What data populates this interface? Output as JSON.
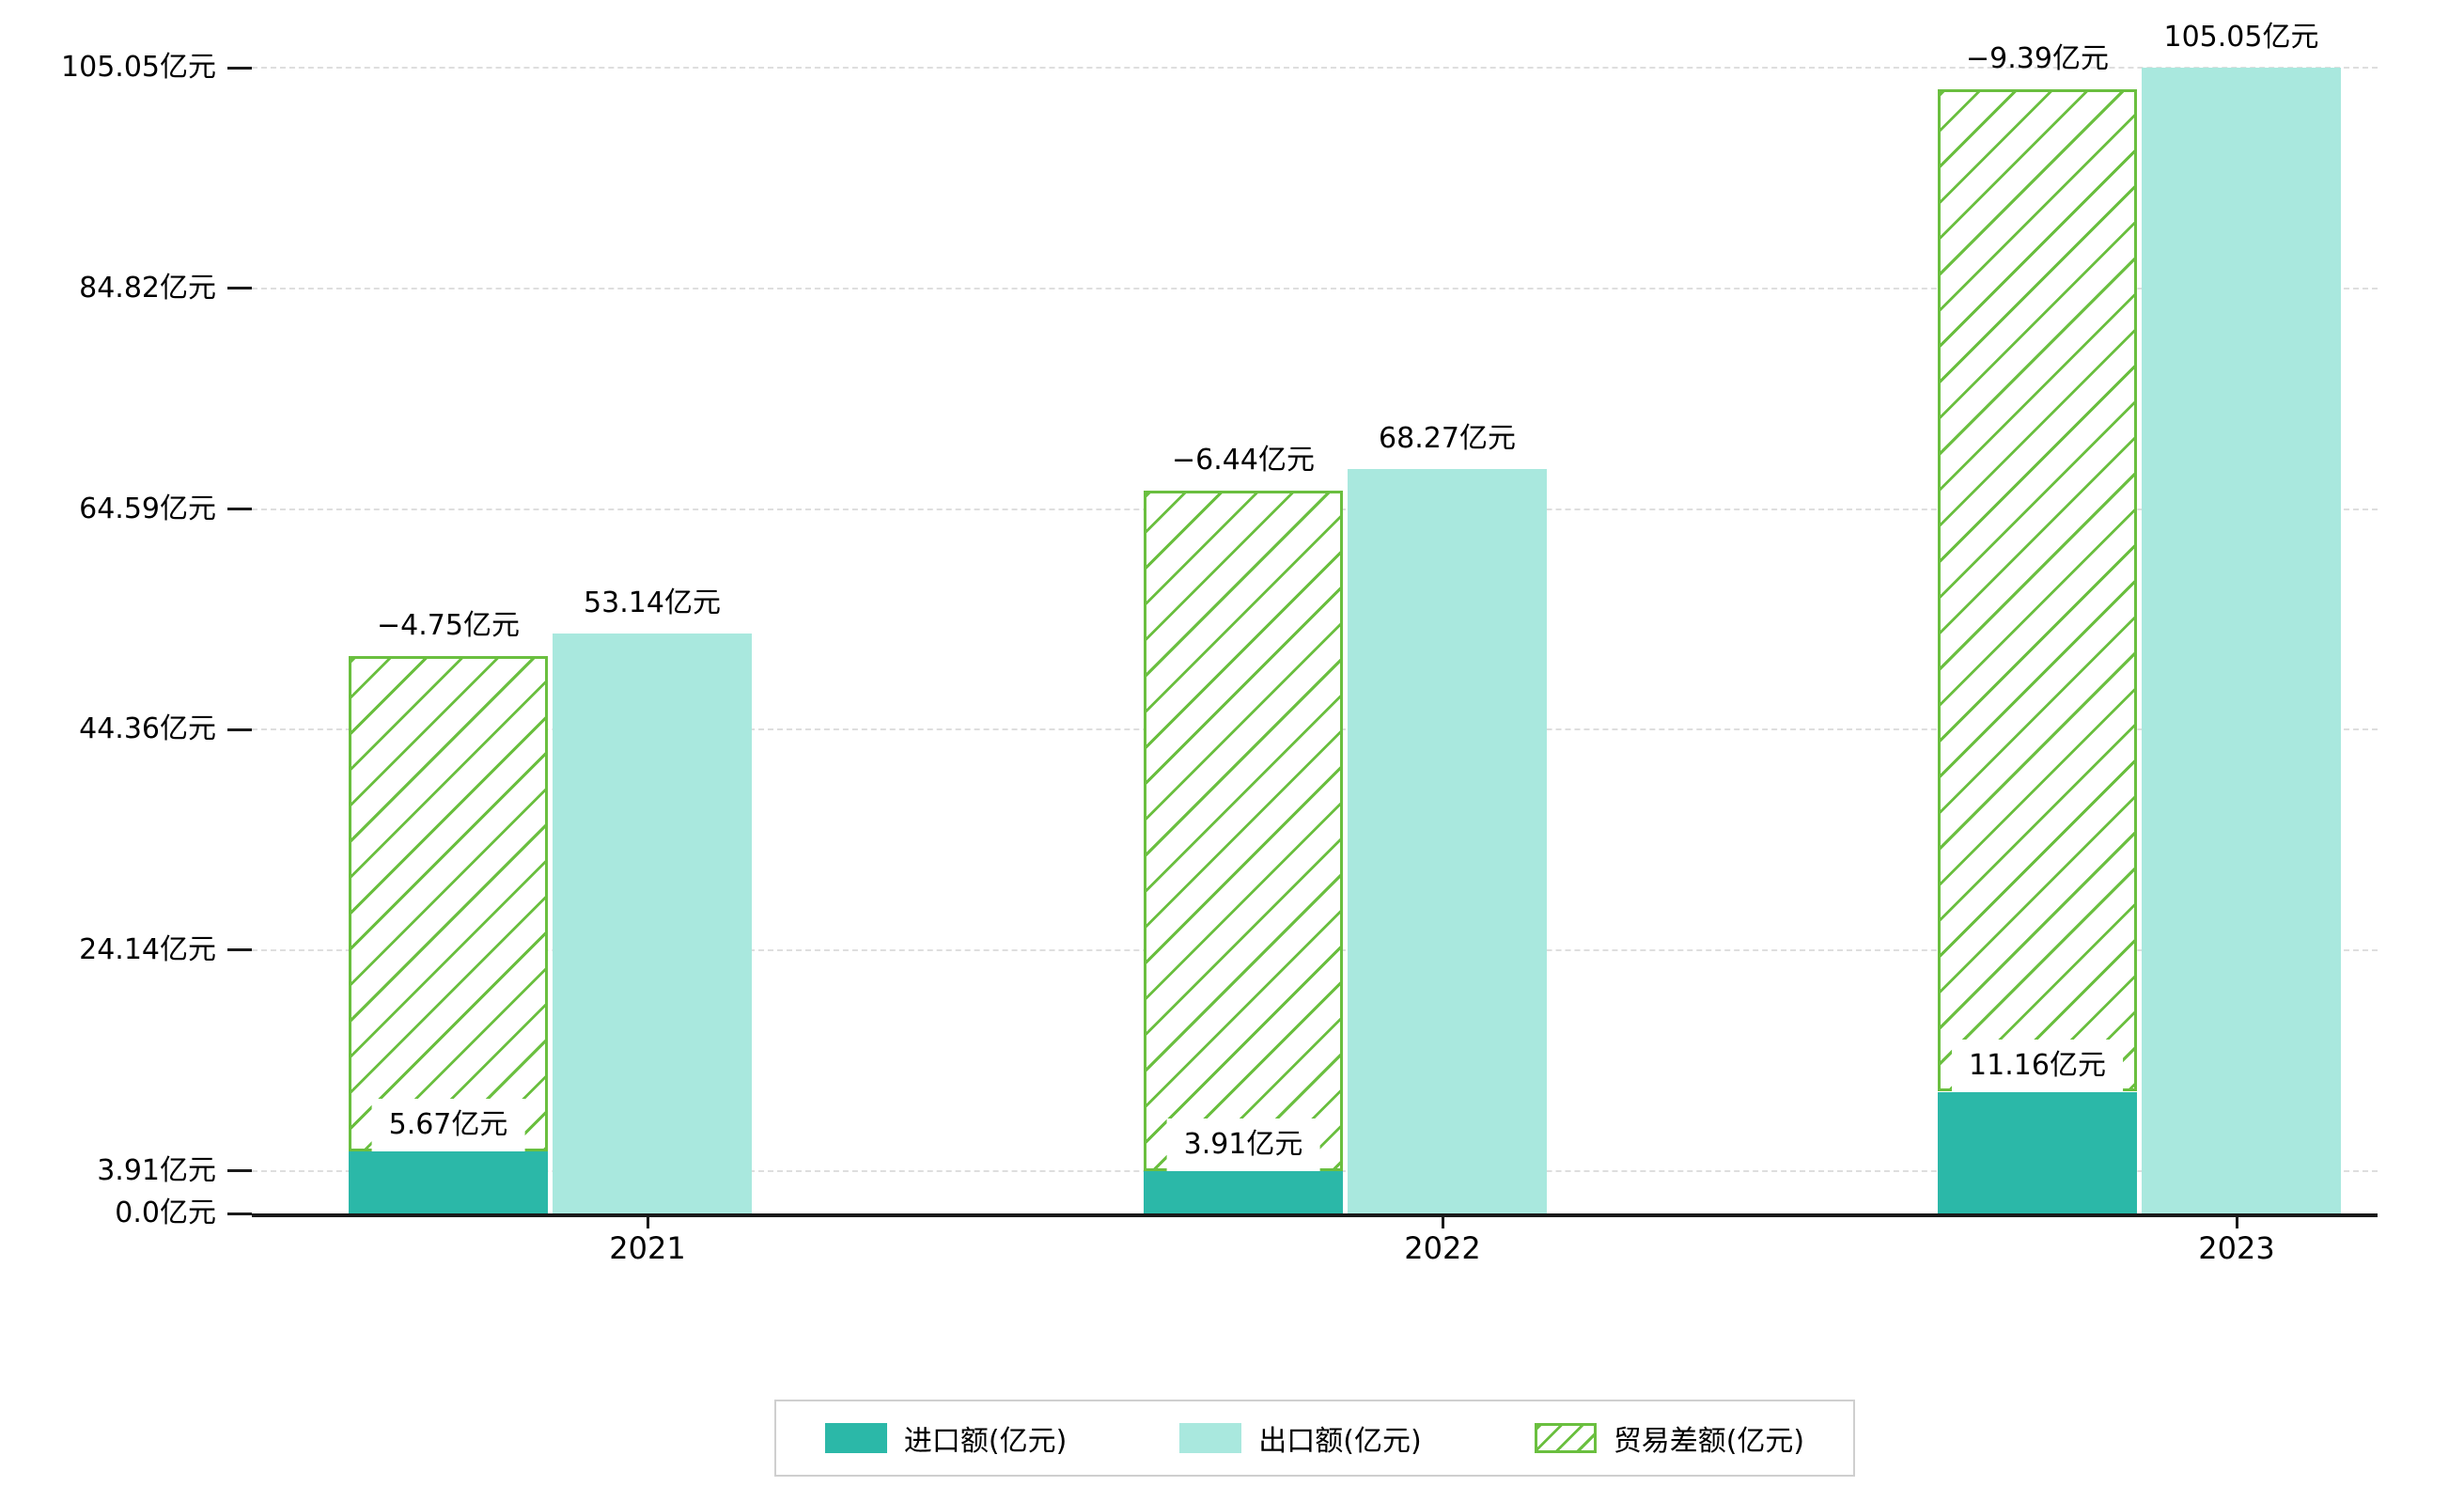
{
  "chart_data": {
    "type": "bar",
    "categories": [
      "2021",
      "2022",
      "2023"
    ],
    "series": [
      {
        "name": "进口额(亿元)",
        "values": [
          5.67,
          3.91,
          11.16
        ],
        "color": "#2bb8a8",
        "pattern": "solid"
      },
      {
        "name": "出口额(亿元)",
        "values": [
          53.14,
          68.27,
          105.05
        ],
        "color": "#a9e8de",
        "pattern": "solid"
      },
      {
        "name": "贸易差额(亿元)",
        "values": [
          -4.75,
          -6.44,
          -9.39
        ],
        "color": "#6abf3f",
        "pattern": "hatch"
      }
    ],
    "bar_value_labels": {
      "import": [
        "5.67亿元",
        "3.91亿元",
        "11.16亿元"
      ],
      "export": [
        "53.14亿元",
        "68.27亿元",
        "105.05亿元"
      ],
      "balance": [
        "−4.75亿元",
        "−6.44亿元",
        "−9.39亿元"
      ]
    },
    "unit": "亿元",
    "y_ticks": [
      {
        "value": 0.0,
        "label": "0.0亿元"
      },
      {
        "value": 3.91,
        "label": "3.91亿元"
      },
      {
        "value": 24.14,
        "label": "24.14亿元"
      },
      {
        "value": 44.36,
        "label": "44.36亿元"
      },
      {
        "value": 64.59,
        "label": "64.59亿元"
      },
      {
        "value": 84.82,
        "label": "84.82亿元"
      },
      {
        "value": 105.05,
        "label": "105.05亿元"
      }
    ],
    "ylim": [
      0,
      105.05
    ],
    "grid": {
      "horizontal": true,
      "style": "dashed"
    },
    "legend": {
      "position": "bottom-center",
      "entries": [
        "进口额(亿元)",
        "出口额(亿元)",
        "贸易差额(亿元)"
      ]
    }
  },
  "colors": {
    "import_bar": "#2bb8a8",
    "export_bar": "#a9e8de",
    "balance_hatch": "#6abf3f",
    "axis": "#1a1a1a",
    "grid": "#dedede",
    "text": "#000000",
    "background": "#ffffff"
  }
}
